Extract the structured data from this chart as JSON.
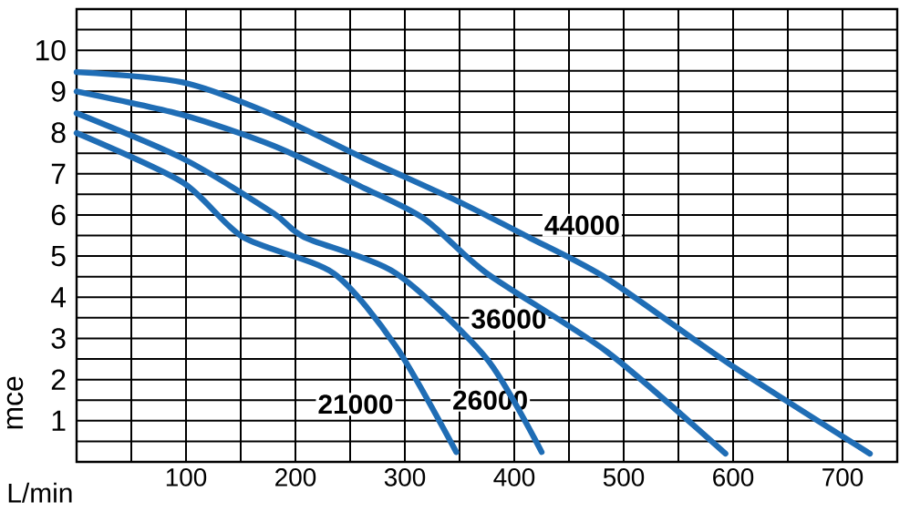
{
  "chart_data": {
    "type": "line",
    "xlabel": "L/min",
    "ylabel": "mce",
    "xlim": [
      0,
      750
    ],
    "ylim": [
      0,
      11
    ],
    "xticks": [
      {
        "value": 50,
        "label": null
      },
      100,
      {
        "value": 150,
        "label": null
      },
      200,
      {
        "value": 250,
        "label": null
      },
      300,
      {
        "value": 350,
        "label": null
      },
      400,
      {
        "value": 450,
        "label": null
      },
      500,
      {
        "value": 550,
        "label": null
      },
      600,
      {
        "value": 650,
        "label": null
      },
      700
    ],
    "yticks": [
      {
        "value": 0.5,
        "label": null
      },
      1,
      {
        "value": 1.5,
        "label": null
      },
      2,
      {
        "value": 2.5,
        "label": null
      },
      3,
      {
        "value": 3.5,
        "label": null
      },
      4,
      {
        "value": 4.5,
        "label": null
      },
      5,
      {
        "value": 5.5,
        "label": null
      },
      6,
      {
        "value": 6.5,
        "label": null
      },
      7,
      {
        "value": 7.5,
        "label": null
      },
      8,
      {
        "value": 8.5,
        "label": null
      },
      9,
      {
        "value": 9.5,
        "label": null
      },
      10,
      {
        "value": 10.5,
        "label": null
      }
    ],
    "grid": true,
    "marker": "none",
    "line_style": "solid",
    "series": [
      {
        "name": "44000",
        "color": "#1f6db5",
        "x": [
          0,
          97,
          180,
          263,
          347,
          413,
          485,
          597,
          725
        ],
        "values": [
          9.47,
          9.22,
          8.43,
          7.37,
          6.35,
          5.46,
          4.45,
          2.37,
          0.2
        ]
      },
      {
        "name": "36000",
        "color": "#1f6db5",
        "x": [
          0,
          97,
          180,
          263,
          318,
          375,
          485,
          593
        ],
        "values": [
          9.0,
          8.43,
          7.68,
          6.65,
          5.9,
          4.58,
          2.67,
          0.2
        ]
      },
      {
        "name": "26000",
        "color": "#1f6db5",
        "x": [
          0,
          97,
          180,
          208,
          292,
          375,
          425
        ],
        "values": [
          8.47,
          7.37,
          6.04,
          5.46,
          4.58,
          2.5,
          0.24
        ]
      },
      {
        "name": "21000",
        "color": "#1f6db5",
        "x": [
          0,
          97,
          152,
          235,
          292,
          347
        ],
        "values": [
          7.99,
          6.79,
          5.46,
          4.58,
          2.8,
          0.24
        ]
      }
    ]
  }
}
